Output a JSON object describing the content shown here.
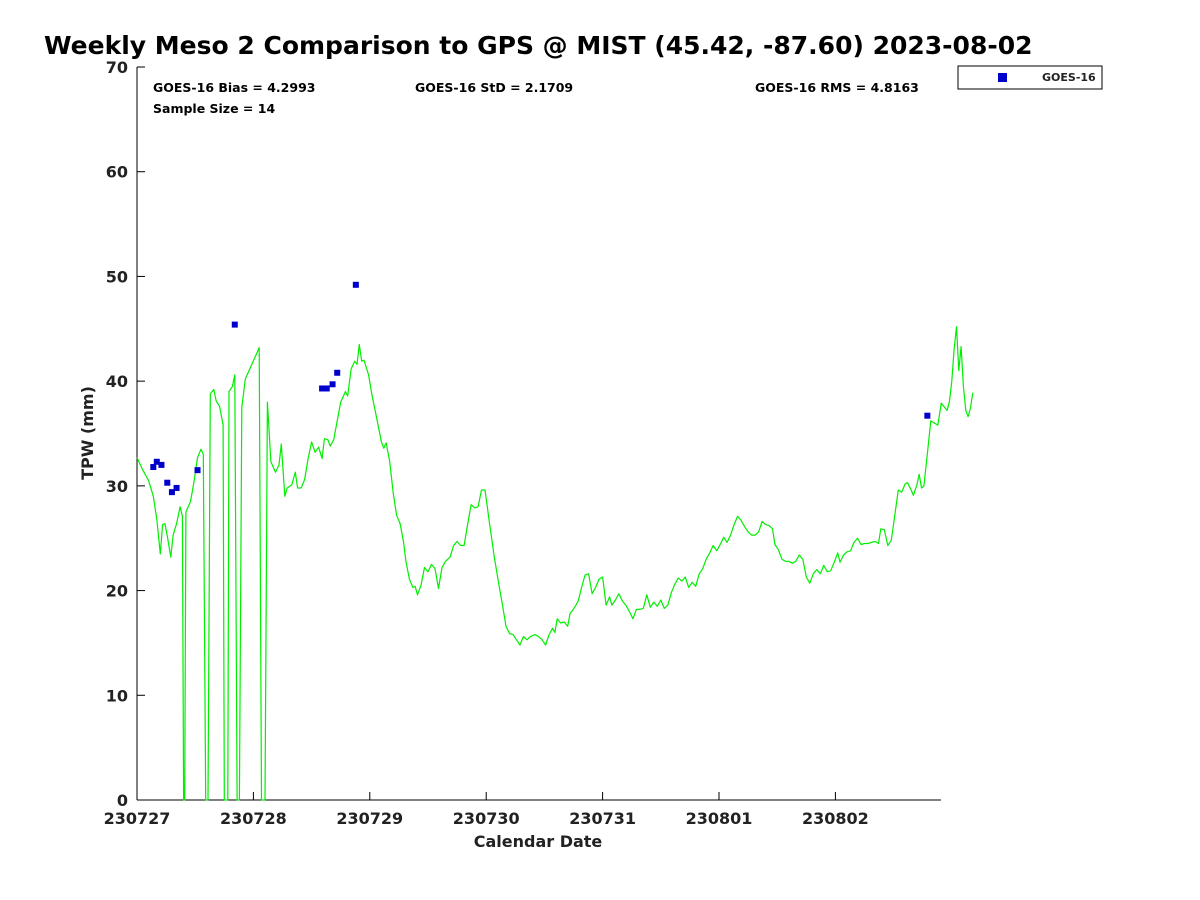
{
  "chart_data": {
    "type": "line",
    "title": "Weekly Meso 2 Comparison to GPS @ MIST (45.42, -87.60) 2023-08-02",
    "xlabel": "Calendar Date",
    "ylabel": "TPW (mm)",
    "x_tick_labels": [
      "230727",
      "230728",
      "230729",
      "230730",
      "230731",
      "230801",
      "230802"
    ],
    "x_range_days": [
      0,
      6.9
    ],
    "ylim": [
      0,
      70
    ],
    "y_ticks": [
      0,
      10,
      20,
      30,
      40,
      50,
      60,
      70
    ],
    "grid": false,
    "legend_placement": "top-right-outside",
    "stats": {
      "bias": "GOES-16 Bias = 4.2993",
      "std": "GOES-16 StD = 2.1709",
      "rms": "GOES-16 RMS = 4.8163",
      "sample": "Sample Size = 14"
    },
    "series": [
      {
        "kind": "line",
        "color": "#00ee00",
        "points": [
          [
            0.0,
            32.7
          ],
          [
            0.05,
            31.5
          ],
          [
            0.1,
            30.5
          ],
          [
            0.14,
            29.0
          ],
          [
            0.17,
            26.8
          ],
          [
            0.2,
            23.5
          ],
          [
            0.22,
            26.3
          ],
          [
            0.24,
            26.4
          ],
          [
            0.26,
            25.2
          ],
          [
            0.29,
            23.2
          ],
          [
            0.31,
            25.3
          ],
          [
            0.34,
            26.4
          ],
          [
            0.37,
            28.0
          ],
          [
            0.39,
            27.1
          ],
          [
            0.4,
            0.0
          ],
          [
            0.41,
            0.0
          ],
          [
            0.42,
            27.5
          ],
          [
            0.46,
            28.5
          ],
          [
            0.49,
            30.4
          ],
          [
            0.52,
            32.7
          ],
          [
            0.55,
            33.5
          ],
          [
            0.57,
            33.0
          ],
          [
            0.59,
            0.0
          ],
          [
            0.61,
            0.0
          ],
          [
            0.63,
            38.8
          ],
          [
            0.66,
            39.2
          ],
          [
            0.68,
            38.1
          ],
          [
            0.71,
            37.6
          ],
          [
            0.74,
            35.8
          ],
          [
            0.75,
            0.0
          ],
          [
            0.78,
            0.0
          ],
          [
            0.79,
            39.0
          ],
          [
            0.82,
            39.5
          ],
          [
            0.84,
            40.6
          ],
          [
            0.86,
            0.0
          ],
          [
            0.88,
            0.0
          ],
          [
            0.9,
            37.5
          ],
          [
            0.93,
            40.2
          ],
          [
            0.97,
            41.2
          ],
          [
            1.01,
            42.2
          ],
          [
            1.05,
            43.2
          ],
          [
            1.07,
            0.0
          ],
          [
            1.1,
            0.0
          ],
          [
            1.12,
            38.0
          ],
          [
            1.15,
            32.3
          ],
          [
            1.19,
            31.3
          ],
          [
            1.22,
            32.0
          ],
          [
            1.24,
            34.0
          ],
          [
            1.27,
            29.0
          ],
          [
            1.29,
            29.8
          ],
          [
            1.33,
            30.1
          ],
          [
            1.36,
            31.3
          ],
          [
            1.38,
            29.8
          ],
          [
            1.41,
            29.8
          ],
          [
            1.44,
            30.6
          ],
          [
            1.47,
            32.6
          ],
          [
            1.5,
            34.2
          ],
          [
            1.53,
            33.2
          ],
          [
            1.56,
            33.7
          ],
          [
            1.59,
            32.6
          ],
          [
            1.61,
            34.5
          ],
          [
            1.64,
            34.4
          ],
          [
            1.66,
            33.8
          ],
          [
            1.69,
            34.4
          ],
          [
            1.72,
            36.2
          ],
          [
            1.75,
            38.0
          ],
          [
            1.79,
            39.0
          ],
          [
            1.81,
            38.6
          ],
          [
            1.84,
            41.2
          ],
          [
            1.87,
            41.9
          ],
          [
            1.89,
            41.6
          ],
          [
            1.91,
            43.5
          ],
          [
            1.93,
            41.9
          ],
          [
            1.95,
            42.0
          ],
          [
            1.99,
            40.6
          ],
          [
            2.02,
            38.6
          ],
          [
            2.06,
            36.4
          ],
          [
            2.1,
            34.2
          ],
          [
            2.12,
            33.6
          ],
          [
            2.14,
            34.1
          ],
          [
            2.17,
            32.4
          ],
          [
            2.2,
            29.4
          ],
          [
            2.23,
            27.2
          ],
          [
            2.26,
            26.4
          ],
          [
            2.29,
            24.6
          ],
          [
            2.31,
            22.8
          ],
          [
            2.34,
            21.1
          ],
          [
            2.37,
            20.3
          ],
          [
            2.39,
            20.4
          ],
          [
            2.41,
            19.6
          ],
          [
            2.44,
            20.5
          ],
          [
            2.47,
            22.2
          ],
          [
            2.5,
            21.8
          ],
          [
            2.53,
            22.5
          ],
          [
            2.56,
            22.1
          ],
          [
            2.59,
            20.2
          ],
          [
            2.62,
            22.2
          ],
          [
            2.65,
            22.8
          ],
          [
            2.69,
            23.2
          ],
          [
            2.72,
            24.3
          ],
          [
            2.75,
            24.7
          ],
          [
            2.78,
            24.3
          ],
          [
            2.81,
            24.3
          ],
          [
            2.84,
            26.3
          ],
          [
            2.87,
            28.2
          ],
          [
            2.9,
            27.9
          ],
          [
            2.93,
            28.0
          ],
          [
            2.96,
            29.6
          ],
          [
            2.99,
            29.6
          ],
          [
            3.03,
            26.3
          ],
          [
            3.07,
            23.2
          ],
          [
            3.11,
            20.5
          ],
          [
            3.14,
            18.6
          ],
          [
            3.17,
            16.6
          ],
          [
            3.2,
            15.9
          ],
          [
            3.23,
            15.8
          ],
          [
            3.26,
            15.3
          ],
          [
            3.29,
            14.8
          ],
          [
            3.32,
            15.6
          ],
          [
            3.35,
            15.3
          ],
          [
            3.38,
            15.6
          ],
          [
            3.42,
            15.8
          ],
          [
            3.45,
            15.6
          ],
          [
            3.48,
            15.3
          ],
          [
            3.51,
            14.8
          ],
          [
            3.54,
            15.8
          ],
          [
            3.57,
            16.4
          ],
          [
            3.59,
            16.0
          ],
          [
            3.61,
            17.3
          ],
          [
            3.64,
            16.9
          ],
          [
            3.67,
            17.0
          ],
          [
            3.7,
            16.6
          ],
          [
            3.72,
            17.8
          ],
          [
            3.76,
            18.4
          ],
          [
            3.79,
            19.0
          ],
          [
            3.82,
            20.3
          ],
          [
            3.85,
            21.5
          ],
          [
            3.88,
            21.6
          ],
          [
            3.91,
            19.7
          ],
          [
            3.94,
            20.3
          ],
          [
            3.97,
            21.1
          ],
          [
            4.0,
            21.3
          ],
          [
            4.03,
            18.6
          ],
          [
            4.06,
            19.4
          ],
          [
            4.08,
            18.6
          ],
          [
            4.11,
            19.1
          ],
          [
            4.14,
            19.7
          ],
          [
            4.17,
            19.0
          ],
          [
            4.2,
            18.6
          ],
          [
            4.23,
            18.0
          ],
          [
            4.26,
            17.3
          ],
          [
            4.29,
            18.2
          ],
          [
            4.32,
            18.2
          ],
          [
            4.35,
            18.3
          ],
          [
            4.38,
            19.6
          ],
          [
            4.41,
            18.4
          ],
          [
            4.44,
            18.9
          ],
          [
            4.47,
            18.5
          ],
          [
            4.5,
            19.1
          ],
          [
            4.53,
            18.3
          ],
          [
            4.56,
            18.6
          ],
          [
            4.59,
            19.8
          ],
          [
            4.62,
            20.6
          ],
          [
            4.65,
            21.2
          ],
          [
            4.68,
            20.9
          ],
          [
            4.71,
            21.3
          ],
          [
            4.74,
            20.3
          ],
          [
            4.77,
            20.8
          ],
          [
            4.8,
            20.4
          ],
          [
            4.83,
            21.6
          ],
          [
            4.86,
            22.1
          ],
          [
            4.89,
            23.0
          ],
          [
            4.92,
            23.6
          ],
          [
            4.95,
            24.3
          ],
          [
            4.98,
            23.8
          ],
          [
            5.01,
            24.4
          ],
          [
            5.04,
            25.1
          ],
          [
            5.07,
            24.6
          ],
          [
            5.1,
            25.3
          ],
          [
            5.13,
            26.3
          ],
          [
            5.16,
            27.1
          ],
          [
            5.19,
            26.7
          ],
          [
            5.22,
            26.1
          ],
          [
            5.25,
            25.6
          ],
          [
            5.28,
            25.3
          ],
          [
            5.31,
            25.3
          ],
          [
            5.34,
            25.6
          ],
          [
            5.37,
            26.6
          ],
          [
            5.4,
            26.3
          ],
          [
            5.43,
            26.2
          ],
          [
            5.46,
            25.9
          ],
          [
            5.48,
            24.4
          ],
          [
            5.51,
            23.9
          ],
          [
            5.54,
            23.0
          ],
          [
            5.57,
            22.8
          ],
          [
            5.6,
            22.8
          ],
          [
            5.63,
            22.6
          ],
          [
            5.66,
            22.8
          ],
          [
            5.69,
            23.4
          ],
          [
            5.72,
            23.0
          ],
          [
            5.75,
            21.3
          ],
          [
            5.78,
            20.7
          ],
          [
            5.81,
            21.6
          ],
          [
            5.84,
            22.0
          ],
          [
            5.87,
            21.6
          ],
          [
            5.9,
            22.4
          ],
          [
            5.93,
            21.8
          ],
          [
            5.96,
            21.9
          ],
          [
            5.99,
            22.7
          ],
          [
            6.02,
            23.6
          ],
          [
            6.04,
            22.7
          ],
          [
            6.07,
            23.4
          ],
          [
            6.1,
            23.7
          ],
          [
            6.13,
            23.8
          ],
          [
            6.16,
            24.6
          ],
          [
            6.19,
            25.0
          ],
          [
            6.22,
            24.4
          ],
          [
            6.25,
            24.5
          ],
          [
            6.28,
            24.5
          ],
          [
            6.31,
            24.6
          ],
          [
            6.34,
            24.7
          ],
          [
            6.37,
            24.5
          ],
          [
            6.39,
            25.9
          ],
          [
            6.42,
            25.8
          ],
          [
            6.45,
            24.3
          ],
          [
            6.48,
            24.8
          ],
          [
            6.51,
            27.2
          ],
          [
            6.54,
            29.6
          ],
          [
            6.57,
            29.4
          ],
          [
            6.6,
            30.2
          ],
          [
            6.62,
            30.3
          ],
          [
            6.65,
            29.6
          ],
          [
            6.67,
            29.1
          ],
          [
            6.7,
            30.1
          ],
          [
            6.72,
            31.1
          ],
          [
            6.74,
            29.8
          ],
          [
            6.76,
            30.0
          ],
          [
            6.79,
            33.1
          ],
          [
            6.82,
            36.2
          ],
          [
            6.85,
            36.0
          ],
          [
            6.88,
            35.8
          ],
          [
            6.91,
            37.9
          ],
          [
            6.93,
            37.6
          ],
          [
            6.96,
            37.2
          ],
          [
            6.98,
            38.1
          ],
          [
            7.0,
            40.0
          ],
          [
            7.02,
            43.0
          ],
          [
            7.04,
            45.2
          ],
          [
            7.06,
            41.0
          ],
          [
            7.08,
            43.3
          ],
          [
            7.1,
            39.5
          ],
          [
            7.12,
            37.2
          ],
          [
            7.14,
            36.6
          ],
          [
            7.16,
            37.4
          ],
          [
            7.18,
            38.9
          ]
        ]
      },
      {
        "kind": "scatter",
        "name": "GOES-16",
        "color": "#0000cc",
        "points": [
          [
            0.14,
            31.8
          ],
          [
            0.17,
            32.3
          ],
          [
            0.21,
            32.0
          ],
          [
            0.26,
            30.3
          ],
          [
            0.3,
            29.4
          ],
          [
            0.34,
            29.8
          ],
          [
            0.52,
            31.5
          ],
          [
            0.84,
            45.4
          ],
          [
            1.59,
            39.3
          ],
          [
            1.63,
            39.3
          ],
          [
            1.68,
            39.7
          ],
          [
            1.72,
            40.8
          ],
          [
            1.88,
            49.2
          ],
          [
            6.79,
            36.7
          ]
        ]
      }
    ]
  }
}
